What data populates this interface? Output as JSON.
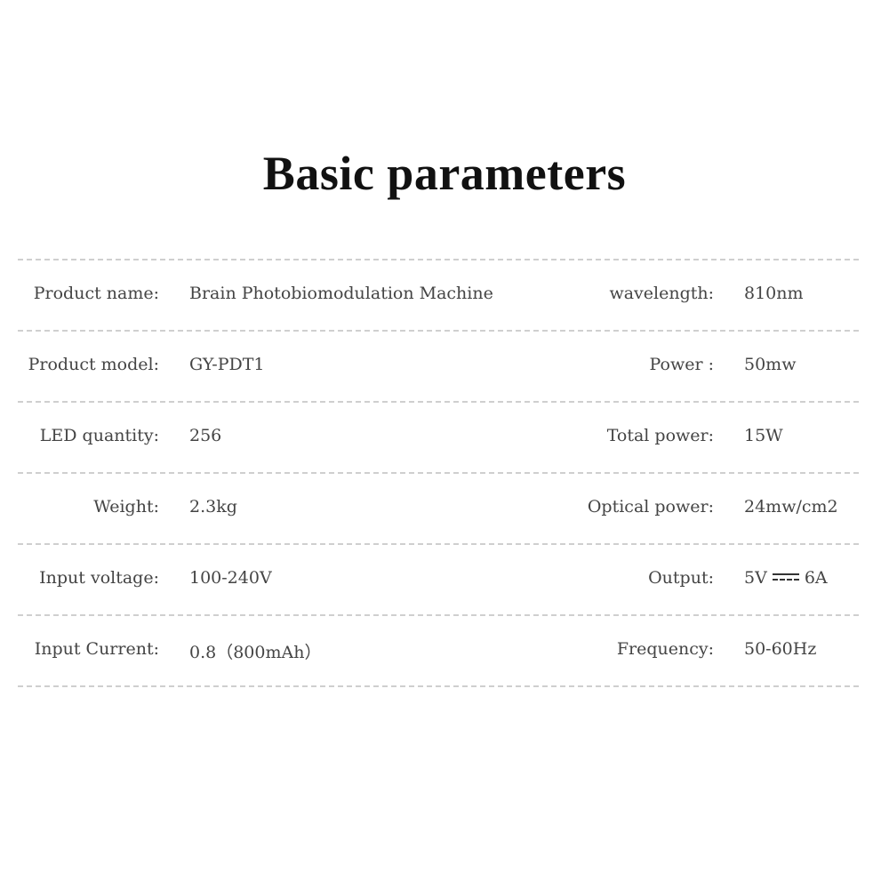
{
  "title": "Basic parameters",
  "rows": [
    {
      "label1": "Product name:",
      "value1": "Brain Photobiomodulation Machine",
      "label2": "wavelength:",
      "value2": "810nm"
    },
    {
      "label1": "Product model:",
      "value1": "GY-PDT1",
      "label2": "Power :",
      "value2": "50mw"
    },
    {
      "label1": "LED quantity:",
      "value1": "256",
      "label2": "Total power:",
      "value2": "15W"
    },
    {
      "label1": "Weight:",
      "value1": "2.3kg",
      "label2": "Optical power:",
      "value2": "24mw/cm2"
    },
    {
      "label1": "Input voltage:",
      "value1": "100-240V",
      "label2": "Output:",
      "value2_a": "5V",
      "value2_b": "6A",
      "value2_icon": "dc-current-symbol"
    },
    {
      "label1": "Input Current:",
      "value1": "0.8（800mAh）",
      "label2": "Frequency:",
      "value2": "50-60Hz"
    }
  ]
}
